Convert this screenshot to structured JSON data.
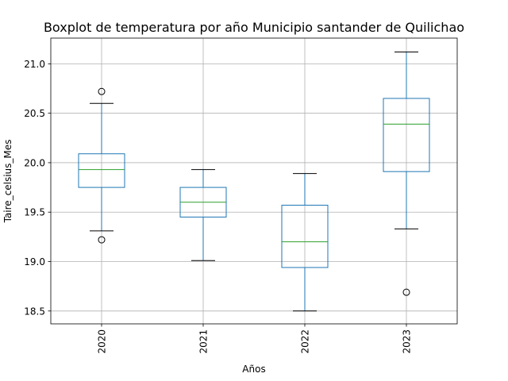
{
  "chart_data": {
    "type": "boxplot",
    "title": "Boxplot de temperatura por año Municipio santander de Quilichao",
    "xlabel": "Años",
    "ylabel": "Taire_celsius_Mes",
    "ylim": [
      18.37,
      21.26
    ],
    "yticks": [
      "18.5",
      "19.0",
      "19.5",
      "20.0",
      "20.5",
      "21.0"
    ],
    "grid": true,
    "categories": [
      "2020",
      "2021",
      "2022",
      "2023"
    ],
    "boxes": [
      {
        "category": "2020",
        "whisker_low": 19.31,
        "q1": 19.75,
        "median": 19.93,
        "q3": 20.09,
        "whisker_high": 20.6,
        "outliers": [
          20.72,
          19.22
        ]
      },
      {
        "category": "2021",
        "whisker_low": 19.01,
        "q1": 19.45,
        "median": 19.6,
        "q3": 19.75,
        "whisker_high": 19.93,
        "outliers": []
      },
      {
        "category": "2022",
        "whisker_low": 18.5,
        "q1": 18.94,
        "median": 19.2,
        "q3": 19.57,
        "whisker_high": 19.89,
        "outliers": []
      },
      {
        "category": "2023",
        "whisker_low": 19.33,
        "q1": 19.91,
        "median": 20.39,
        "q3": 20.65,
        "whisker_high": 21.12,
        "outliers": [
          18.69
        ]
      }
    ],
    "colors": {
      "box": "#1f77b4",
      "median": "#2ca02c",
      "grid": "#b0b0b0",
      "outlier": "#000000"
    }
  }
}
